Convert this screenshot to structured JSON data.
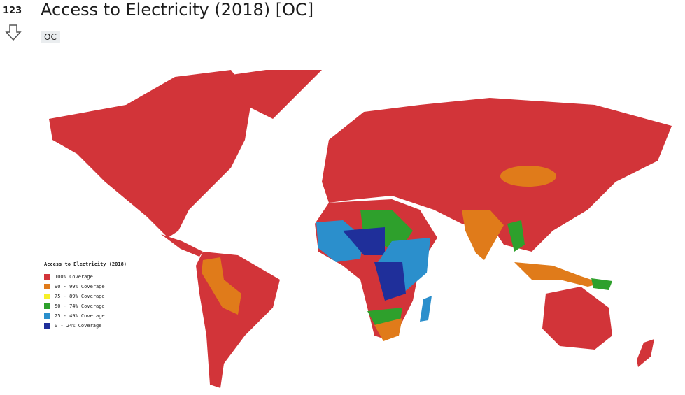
{
  "post": {
    "score": 123,
    "title": "Access to Electricity (2018) [OC]",
    "flair": "OC"
  },
  "map": {
    "legend_title": "Access to Electricity (2018)",
    "legend": [
      {
        "label": "100% Coverage",
        "color": "#d23439"
      },
      {
        "label": "90 - 99% Coverage",
        "color": "#e07b1a"
      },
      {
        "label": "75 - 89% Coverage",
        "color": "#f6f029"
      },
      {
        "label": "50 - 74% Coverage",
        "color": "#2ea02c"
      },
      {
        "label": "25 - 49% Coverage",
        "color": "#2b8fcc"
      },
      {
        "label": "0 - 24% Coverage",
        "color": "#1f2f9a"
      }
    ]
  }
}
